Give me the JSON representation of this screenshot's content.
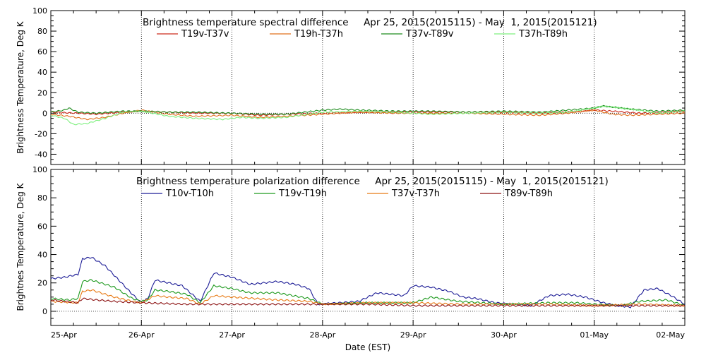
{
  "chart_data": [
    {
      "type": "line",
      "title": "Brightness temperature spectral difference     Apr 25, 2015(2015115) - May  1, 2015(2015121)",
      "ylabel": "Brightness Temperature, Deg K",
      "xlabel": "",
      "ylim": [
        -50,
        100
      ],
      "yticks": [
        "-40",
        "-20",
        "0",
        "20",
        "40",
        "60",
        "80",
        "100"
      ],
      "xlim": [
        0,
        7
      ],
      "grid": true,
      "legend_position": "top",
      "series": [
        {
          "name": "T19v-T37v",
          "color": "#cc2a1c",
          "x": [
            0,
            0.3,
            0.5,
            0.8,
            1.0,
            1.3,
            1.6,
            2.0,
            2.3,
            2.6,
            3.0,
            3.4,
            3.8,
            4.2,
            4.6,
            5.0,
            5.4,
            5.7,
            6.0,
            6.2,
            6.5,
            6.8,
            7.0
          ],
          "values": [
            1,
            0,
            -1,
            1,
            2,
            1,
            0,
            0,
            -2,
            -1,
            0,
            1,
            1,
            1,
            1,
            1,
            0,
            1,
            3,
            2,
            0,
            1,
            2
          ]
        },
        {
          "name": "T19h-T37h",
          "color": "#e0701c",
          "x": [
            0,
            0.2,
            0.4,
            0.6,
            0.8,
            1.0,
            1.3,
            1.6,
            2.0,
            2.3,
            2.6,
            3.0,
            3.4,
            3.8,
            4.2,
            4.6,
            5.0,
            5.4,
            5.7,
            6.0,
            6.2,
            6.4,
            6.7,
            7.0
          ],
          "values": [
            -1,
            -3,
            -6,
            -4,
            0,
            3,
            -1,
            -3,
            -2,
            -4,
            -3,
            -1,
            1,
            0,
            0,
            0,
            -1,
            -2,
            0,
            3,
            -1,
            -2,
            -1,
            0
          ]
        },
        {
          "name": "T37v-T89v",
          "color": "#1e8c1e",
          "x": [
            0,
            0.15,
            0.2,
            0.3,
            0.5,
            0.8,
            1.0,
            1.3,
            1.6,
            2.0,
            2.3,
            2.6,
            3.0,
            3.2,
            3.4,
            3.8,
            4.2,
            4.6,
            5.0,
            5.4,
            5.7,
            6.0,
            6.1,
            6.4,
            6.7,
            7.0
          ],
          "values": [
            1,
            3,
            5,
            1,
            0,
            2,
            2,
            1,
            1,
            0,
            -1,
            -1,
            3,
            4,
            3,
            2,
            2,
            1,
            2,
            1,
            3,
            5,
            7,
            4,
            2,
            3
          ]
        },
        {
          "name": "T37h-T89h",
          "color": "#7ef07e",
          "x": [
            0,
            0.15,
            0.25,
            0.4,
            0.6,
            0.8,
            1.0,
            1.3,
            1.6,
            1.9,
            2.1,
            2.3,
            2.6,
            3.0,
            3.4,
            3.8,
            4.2,
            4.6,
            5.0,
            5.4,
            5.7,
            6.0,
            6.1,
            6.4,
            6.7,
            7.0
          ],
          "values": [
            -2,
            -5,
            -11,
            -10,
            -5,
            1,
            2,
            -3,
            -5,
            -6,
            -4,
            -5,
            -4,
            1,
            2,
            1,
            -1,
            0,
            1,
            0,
            1,
            5,
            7,
            4,
            0,
            2
          ]
        }
      ]
    },
    {
      "type": "line",
      "title": "Brightness temperature polarization difference     Apr 25, 2015(2015115) - May  1, 2015(2015121)",
      "ylabel": "Brightnes Temperature, Deg K",
      "xlabel": "Date (EST)",
      "ylim": [
        -10,
        100
      ],
      "yticks": [
        "0",
        "20",
        "40",
        "60",
        "80",
        "100"
      ],
      "xlim": [
        0,
        7
      ],
      "x_tick_labels": [
        "25-Apr",
        "26-Apr",
        "27-Apr",
        "28-Apr",
        "29-Apr",
        "30-Apr",
        "01-May",
        "02-May"
      ],
      "grid": true,
      "legend_position": "top",
      "series": [
        {
          "name": "T10v-T10h",
          "color": "#1c1c96",
          "x": [
            0,
            0.15,
            0.3,
            0.35,
            0.45,
            0.6,
            0.75,
            0.9,
            1.0,
            1.07,
            1.15,
            1.3,
            1.45,
            1.65,
            1.8,
            2.0,
            2.2,
            2.5,
            2.7,
            2.85,
            2.95,
            3.2,
            3.4,
            3.6,
            3.75,
            3.9,
            4.0,
            4.2,
            4.4,
            4.55,
            4.7,
            4.9,
            5.1,
            5.3,
            5.5,
            5.7,
            5.9,
            6.1,
            6.25,
            6.4,
            6.55,
            6.7,
            6.85,
            7.0
          ],
          "values": [
            23,
            24,
            26,
            37,
            38,
            32,
            22,
            12,
            6,
            9,
            22,
            20,
            18,
            7,
            27,
            24,
            19,
            21,
            19,
            16,
            5,
            6,
            7,
            13,
            12,
            11,
            18,
            17,
            14,
            10,
            9,
            6,
            5,
            4,
            11,
            12,
            10,
            6,
            4,
            3,
            15,
            16,
            11,
            5
          ]
        },
        {
          "name": "T19v-T19h",
          "color": "#1e9a1e",
          "x": [
            0,
            0.2,
            0.3,
            0.35,
            0.45,
            0.7,
            0.9,
            1.0,
            1.07,
            1.15,
            1.3,
            1.5,
            1.65,
            1.8,
            2.0,
            2.2,
            2.5,
            2.85,
            3.0,
            3.5,
            4.0,
            4.2,
            4.5,
            5.0,
            5.5,
            5.8,
            6.0,
            6.3,
            6.5,
            6.8,
            7.0
          ],
          "values": [
            9,
            8,
            9,
            21,
            22,
            17,
            9,
            7,
            8,
            15,
            14,
            12,
            6,
            18,
            16,
            13,
            13,
            9,
            5,
            6,
            6,
            10,
            7,
            5,
            6,
            6,
            5,
            4,
            7,
            8,
            4
          ]
        },
        {
          "name": "T37v-T37h",
          "color": "#e87a14",
          "x": [
            0,
            0.3,
            0.35,
            0.45,
            0.7,
            0.9,
            1.0,
            1.15,
            1.3,
            1.5,
            1.65,
            1.8,
            2.0,
            2.5,
            2.85,
            3.0,
            3.5,
            4.0,
            4.5,
            5.0,
            5.5,
            6.0,
            6.5,
            7.0
          ],
          "values": [
            7,
            6,
            14,
            15,
            10,
            7,
            6,
            11,
            10,
            9,
            5,
            11,
            10,
            8,
            7,
            5,
            6,
            6,
            5,
            5,
            5,
            4,
            5,
            4
          ]
        },
        {
          "name": "T89v-T89h",
          "color": "#8c1212",
          "x": [
            0,
            0.3,
            0.35,
            0.5,
            0.7,
            1.0,
            1.5,
            2.0,
            2.5,
            3.0,
            3.5,
            4.0,
            4.5,
            5.0,
            5.5,
            6.0,
            6.5,
            7.0
          ],
          "values": [
            8,
            6,
            9,
            8,
            7,
            6,
            5,
            5,
            5,
            5,
            5,
            4,
            4,
            4,
            4,
            4,
            4,
            4
          ]
        }
      ]
    }
  ]
}
